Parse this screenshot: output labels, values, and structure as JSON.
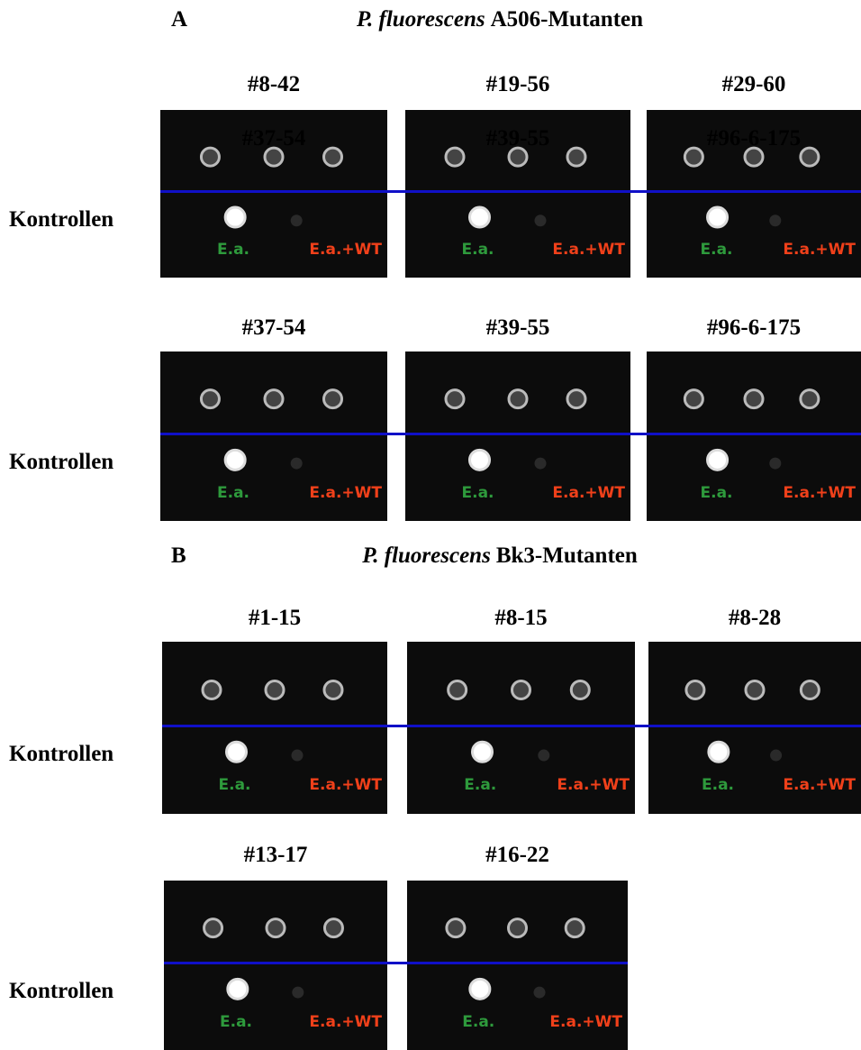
{
  "sections": [
    {
      "letter": "A",
      "title_italic": "P. fluorescens",
      "title_rest": "A506-Mutanten",
      "rows": [
        {
          "row_label": "Kontrollen",
          "panels": [
            {
              "label": "#8-42",
              "overlay": "#37-54",
              "controls": [
                "E.a.",
                "E.a.+WT"
              ]
            },
            {
              "label": "#19-56",
              "overlay": "#39-55",
              "controls": [
                "E.a.",
                "E.a.+WT"
              ]
            },
            {
              "label": "#29-60",
              "overlay": "#96-6-175",
              "controls": [
                "E.a.",
                "E.a.+WT"
              ]
            }
          ]
        },
        {
          "row_label": "Kontrollen",
          "panels": [
            {
              "label": "#37-54",
              "controls": [
                "E.a.",
                "E.a.+WT"
              ]
            },
            {
              "label": "#39-55",
              "controls": [
                "E.a.",
                "E.a.+WT"
              ]
            },
            {
              "label": "#96-6-175",
              "controls": [
                "E.a.",
                "E.a.+WT"
              ]
            }
          ]
        }
      ]
    },
    {
      "letter": "B",
      "title_italic": "P. fluorescens",
      "title_rest": "Bk3-Mutanten",
      "rows": [
        {
          "row_label": "Kontrollen",
          "panels": [
            {
              "label": "#1-15",
              "controls": [
                "E.a.",
                "E.a.+WT"
              ]
            },
            {
              "label": "#8-15",
              "controls": [
                "E.a.",
                "E.a.+WT"
              ]
            },
            {
              "label": "#8-28",
              "controls": [
                "E.a.",
                "E.a.+WT"
              ]
            }
          ]
        },
        {
          "row_label": "Kontrollen",
          "panels": [
            {
              "label": "#13-17",
              "controls": [
                "E.a.",
                "E.a.+WT"
              ]
            },
            {
              "label": "#16-22",
              "controls": [
                "E.a.",
                "E.a.+WT"
              ]
            }
          ]
        }
      ]
    }
  ]
}
